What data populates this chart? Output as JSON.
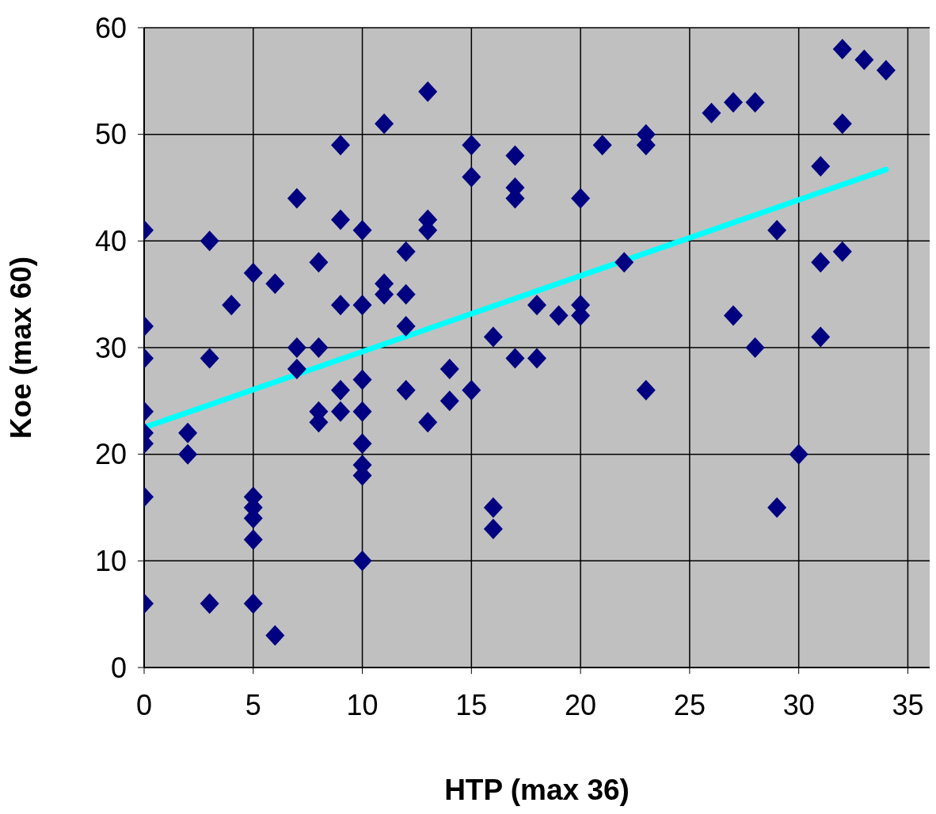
{
  "chart_data": {
    "type": "scatter",
    "xlabel": "HTP (max 36)",
    "ylabel": "Koe (max 60)",
    "xlim": [
      0,
      36
    ],
    "xticks": [
      0,
      5,
      10,
      15,
      20,
      25,
      30,
      35
    ],
    "ylim": [
      0,
      60
    ],
    "yticks": [
      0,
      10,
      20,
      30,
      40,
      50,
      60
    ],
    "grid": true,
    "legend": false,
    "series": [
      {
        "color": "#000080",
        "marker": "diamond",
        "x": [
          0,
          0,
          0,
          0,
          0,
          0,
          0,
          0,
          2,
          2,
          3,
          3,
          3,
          4,
          5,
          5,
          5,
          5,
          5,
          5,
          6,
          6,
          7,
          7,
          7,
          8,
          8,
          8,
          8,
          9,
          9,
          9,
          9,
          9,
          10,
          10,
          10,
          10,
          10,
          10,
          10,
          10,
          11,
          11,
          11,
          12,
          12,
          12,
          12,
          13,
          13,
          13,
          13,
          14,
          14,
          15,
          15,
          15,
          16,
          16,
          16,
          17,
          17,
          17,
          17,
          18,
          18,
          19,
          20,
          20,
          20,
          21,
          22,
          23,
          23,
          23,
          26,
          27,
          27,
          28,
          28,
          29,
          29,
          30,
          31,
          31,
          31,
          32,
          32,
          32,
          33,
          34
        ],
        "values": [
          41,
          32,
          29,
          24,
          22,
          21,
          16,
          6,
          22,
          20,
          40,
          29,
          6,
          34,
          37,
          16,
          15,
          14,
          12,
          6,
          36,
          3,
          44,
          30,
          28,
          38,
          30,
          24,
          23,
          49,
          42,
          34,
          26,
          24,
          41,
          34,
          27,
          24,
          21,
          19,
          18,
          10,
          51,
          36,
          35,
          39,
          35,
          32,
          26,
          54,
          42,
          41,
          23,
          28,
          25,
          49,
          46,
          26,
          31,
          15,
          13,
          48,
          45,
          44,
          29,
          34,
          29,
          33,
          44,
          34,
          33,
          49,
          38,
          50,
          49,
          26,
          52,
          53,
          33,
          53,
          30,
          41,
          15,
          20,
          47,
          38,
          31,
          58,
          51,
          39,
          57,
          56
        ]
      },
      {
        "type": "line",
        "color": "#00ffff",
        "line_style": "solid",
        "marker": "none",
        "x": [
          0,
          34
        ],
        "values": [
          22.5,
          46.7
        ]
      }
    ]
  }
}
